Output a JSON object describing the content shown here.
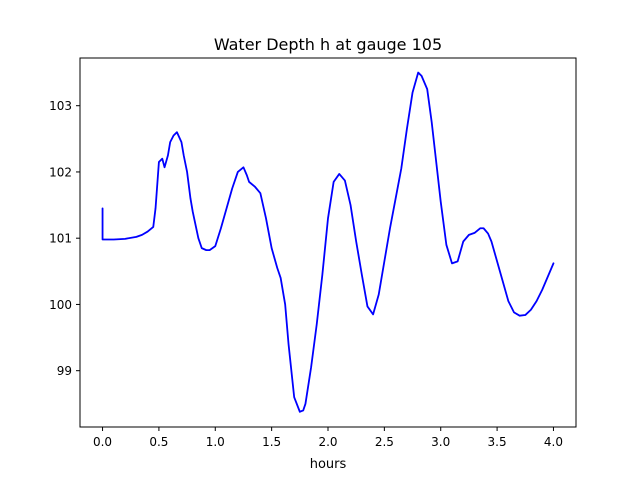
{
  "chart_data": {
    "type": "line",
    "title": "Water Depth h at gauge 105",
    "xlabel": "hours",
    "ylabel": "",
    "xlim": [
      -0.2,
      4.2
    ],
    "ylim": [
      98.15,
      103.72
    ],
    "x_ticks": [
      0.0,
      0.5,
      1.0,
      1.5,
      2.0,
      2.5,
      3.0,
      3.5,
      4.0
    ],
    "x_tick_labels": [
      "0.0",
      "0.5",
      "1.0",
      "1.5",
      "2.0",
      "2.5",
      "3.0",
      "3.5",
      "4.0"
    ],
    "y_ticks": [
      99,
      100,
      101,
      102,
      103
    ],
    "y_tick_labels": [
      "99",
      "100",
      "101",
      "102",
      "103"
    ],
    "grid": false,
    "series": [
      {
        "color": "#0000ff",
        "x": [
          0.0,
          0.0,
          0.1,
          0.2,
          0.3,
          0.35,
          0.4,
          0.45,
          0.47,
          0.5,
          0.53,
          0.55,
          0.58,
          0.6,
          0.63,
          0.66,
          0.7,
          0.72,
          0.75,
          0.78,
          0.8,
          0.85,
          0.88,
          0.92,
          0.95,
          1.0,
          1.05,
          1.1,
          1.15,
          1.2,
          1.25,
          1.28,
          1.3,
          1.35,
          1.4,
          1.45,
          1.5,
          1.55,
          1.58,
          1.62,
          1.65,
          1.7,
          1.75,
          1.78,
          1.8,
          1.85,
          1.9,
          1.95,
          2.0,
          2.05,
          2.1,
          2.15,
          2.2,
          2.25,
          2.3,
          2.35,
          2.4,
          2.45,
          2.5,
          2.55,
          2.6,
          2.65,
          2.7,
          2.75,
          2.8,
          2.83,
          2.88,
          2.92,
          2.95,
          3.0,
          3.05,
          3.1,
          3.15,
          3.2,
          3.25,
          3.3,
          3.35,
          3.38,
          3.42,
          3.45,
          3.5,
          3.55,
          3.6,
          3.65,
          3.7,
          3.75,
          3.8,
          3.85,
          3.9,
          3.95,
          4.0
        ],
        "values": [
          101.45,
          100.98,
          100.98,
          100.99,
          101.02,
          101.05,
          101.1,
          101.17,
          101.45,
          102.15,
          102.2,
          102.07,
          102.25,
          102.45,
          102.55,
          102.6,
          102.45,
          102.25,
          102.0,
          101.6,
          101.4,
          101.0,
          100.85,
          100.82,
          100.82,
          100.88,
          101.15,
          101.45,
          101.75,
          102.0,
          102.07,
          101.95,
          101.85,
          101.78,
          101.68,
          101.3,
          100.85,
          100.55,
          100.4,
          100.0,
          99.4,
          98.6,
          98.38,
          98.4,
          98.5,
          99.05,
          99.7,
          100.45,
          101.3,
          101.85,
          101.97,
          101.87,
          101.5,
          100.95,
          100.45,
          99.97,
          99.85,
          100.15,
          100.65,
          101.15,
          101.6,
          102.05,
          102.65,
          103.2,
          103.5,
          103.45,
          103.25,
          102.75,
          102.3,
          101.55,
          100.9,
          100.62,
          100.65,
          100.95,
          101.05,
          101.08,
          101.15,
          101.15,
          101.07,
          100.95,
          100.65,
          100.35,
          100.05,
          99.88,
          99.83,
          99.84,
          99.92,
          100.05,
          100.22,
          100.42,
          100.62
        ]
      }
    ]
  }
}
